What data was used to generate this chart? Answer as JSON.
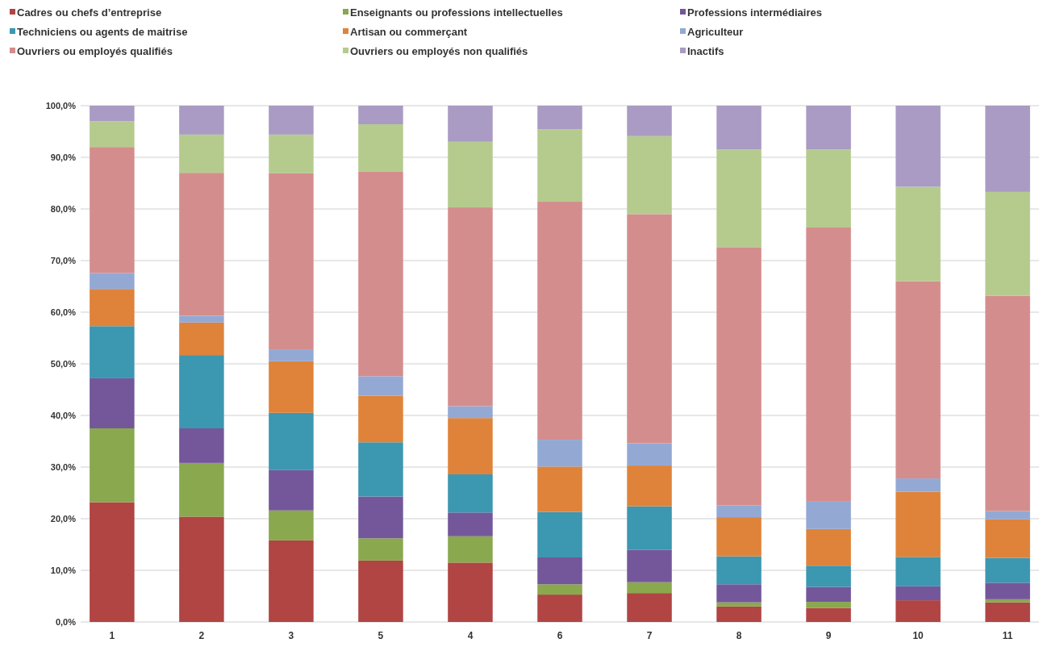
{
  "chart_data": {
    "type": "bar",
    "stacked": true,
    "categories": [
      "1",
      "2",
      "3",
      "5",
      "4",
      "6",
      "7",
      "8",
      "9",
      "10",
      "11"
    ],
    "series": [
      {
        "name": "Cadres ou chefs d’entreprise",
        "color": "#b04543",
        "values": [
          23.2,
          20.4,
          15.8,
          11.9,
          11.5,
          5.3,
          5.6,
          3.0,
          2.7,
          4.2,
          3.8
        ]
      },
      {
        "name": "Enseignants ou professions intellectuelles",
        "color": "#8aa84e",
        "values": [
          14.3,
          10.4,
          5.8,
          4.3,
          5.1,
          2.0,
          2.1,
          0.8,
          1.2,
          0,
          0.6
        ]
      },
      {
        "name": "Professions intermédiaires",
        "color": "#74579a",
        "values": [
          9.7,
          6.7,
          7.8,
          8.1,
          4.6,
          5.2,
          6.3,
          3.5,
          2.9,
          2.7,
          3.2
        ]
      },
      {
        "name": "Techniciens ou agents de maitrise",
        "color": "#3c97b1",
        "values": [
          10.1,
          14.2,
          11.1,
          10.5,
          7.4,
          8.8,
          8.4,
          5.4,
          4.1,
          5.7,
          4.8
        ]
      },
      {
        "name": "Artisan ou commerçant",
        "color": "#df833a",
        "values": [
          7.2,
          6.3,
          10.0,
          9.0,
          10.9,
          8.8,
          7.9,
          7.6,
          7.1,
          12.6,
          7.5
        ]
      },
      {
        "name": "Agriculteur",
        "color": "#93a9d4",
        "values": [
          3.1,
          1.3,
          2.3,
          3.8,
          2.3,
          5.2,
          4.3,
          2.3,
          5.3,
          2.6,
          1.6
        ]
      },
      {
        "name": "Ouvriers ou employés qualifiés",
        "color": "#d48d8d",
        "values": [
          24.4,
          27.7,
          34.1,
          39.6,
          38.5,
          46.1,
          44.4,
          50.0,
          53.1,
          38.2,
          41.7
        ]
      },
      {
        "name": "Ouvriers ou employés non qualifiés",
        "color": "#b5cb8e",
        "values": [
          5.0,
          7.4,
          7.5,
          9.2,
          12.7,
          14.0,
          15.1,
          18.9,
          15.1,
          18.3,
          20.1
        ]
      },
      {
        "name": "Inactifs",
        "color": "#a99bc3",
        "values": [
          3.0,
          5.6,
          5.6,
          3.6,
          7.0,
          4.6,
          5.9,
          8.5,
          8.5,
          15.7,
          16.7
        ]
      }
    ],
    "ylim": [
      0,
      100
    ],
    "yticks": [
      {
        "value": 0,
        "label": "0,0%"
      },
      {
        "value": 10,
        "label": "10,0%"
      },
      {
        "value": 20,
        "label": "20,0%"
      },
      {
        "value": 30,
        "label": "30,0%"
      },
      {
        "value": 40,
        "label": "40,0%"
      },
      {
        "value": 50,
        "label": "50,0%"
      },
      {
        "value": 60,
        "label": "60,0%"
      },
      {
        "value": 70,
        "label": "70,0%"
      },
      {
        "value": 80,
        "label": "80,0%"
      },
      {
        "value": 90,
        "label": "90,0%"
      },
      {
        "value": 100,
        "label": "100,0%"
      }
    ],
    "grid": "y",
    "legend": "top"
  }
}
